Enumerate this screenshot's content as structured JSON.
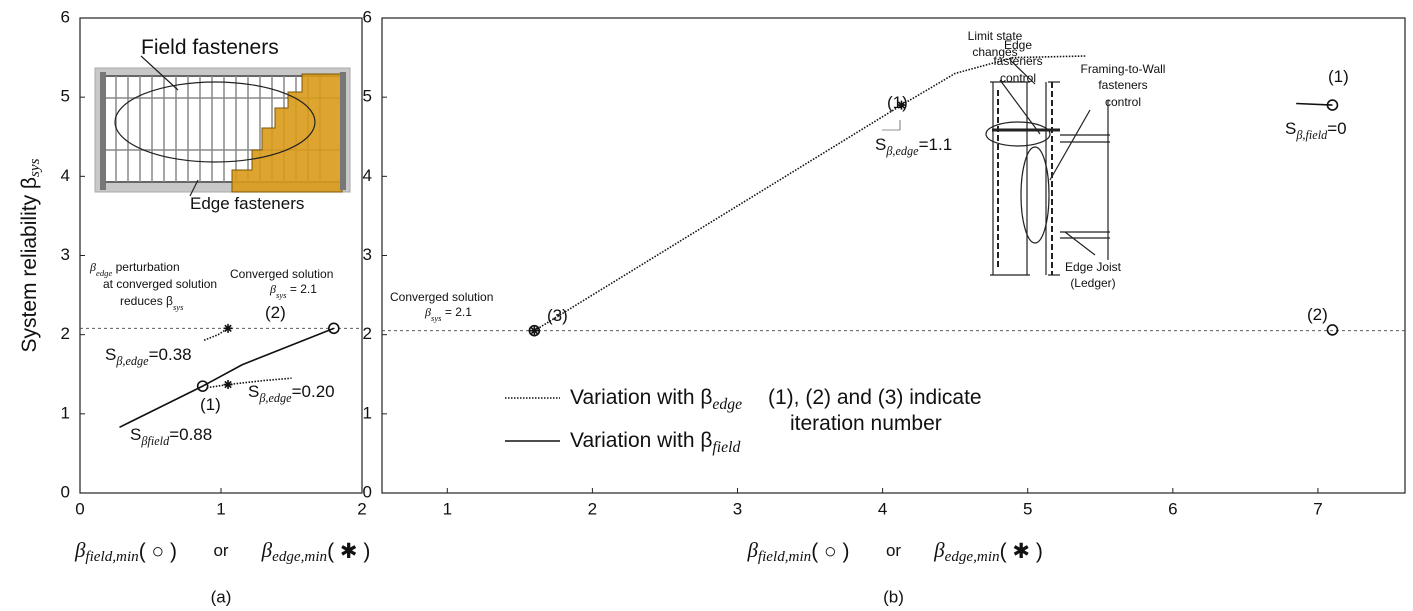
{
  "chart_data": [
    {
      "type": "line",
      "panel_label": "(a)",
      "ylabel": {
        "text": "System reliability   β",
        "sub": "sys"
      },
      "xlabel": [
        {
          "text": "β",
          "sub": "field,min",
          "after": "( ○ )"
        },
        {
          "text": "or"
        },
        {
          "text": "β",
          "sub": "edge,min",
          "after": "( ✱ )"
        }
      ],
      "xlim": [
        0,
        2
      ],
      "ylim": [
        0,
        6
      ],
      "xticks": [
        0,
        1,
        2
      ],
      "yticks": [
        0,
        1,
        2,
        3,
        4,
        5,
        6
      ],
      "hlines": [
        2.08
      ],
      "series": [
        {
          "style": "solid",
          "x": [
            0.28,
            0.87,
            1.15,
            1.8
          ],
          "values": [
            0.83,
            1.35,
            1.62,
            2.08
          ]
        },
        {
          "style": "dotted",
          "x": [
            0.9,
            1.05,
            1.3,
            1.5
          ],
          "values": [
            1.33,
            1.37,
            1.42,
            1.45
          ]
        },
        {
          "style": "dotted",
          "x": [
            0.88,
            0.98,
            1.05
          ],
          "values": [
            1.93,
            2.0,
            2.08
          ]
        }
      ],
      "points": [
        {
          "marker": "circle",
          "x": [
            0.87,
            1.8
          ],
          "values": [
            1.35,
            2.08
          ]
        },
        {
          "marker": "star",
          "x": [
            1.05,
            1.05
          ],
          "values": [
            1.37,
            2.08
          ]
        }
      ],
      "annotations": [
        {
          "text": "Field fasteners"
        },
        {
          "text": "Edge fasteners"
        },
        {
          "text": "β",
          "sub": "edge",
          "after": " perturbation"
        },
        {
          "text": "at converged solution"
        },
        {
          "text": "reduces β",
          "sub": "sys"
        },
        {
          "text": "Converged solution"
        },
        {
          "text": "β",
          "sub": "sys",
          "after": " = 2.1"
        },
        {
          "text": "(2)"
        },
        {
          "text": "S",
          "sub": "β,edge",
          "after": "=0.38"
        },
        {
          "text": "(1)"
        },
        {
          "text": "S",
          "sub": "β,edge",
          "after": "=0.20"
        },
        {
          "text": "S",
          "sub": "βfield",
          "after": "=0.88"
        }
      ]
    },
    {
      "type": "line",
      "panel_label": "(b)",
      "xlabel": [
        {
          "text": "β",
          "sub": "field,min",
          "after": "( ○ )"
        },
        {
          "text": "or"
        },
        {
          "text": "β",
          "sub": "edge,min",
          "after": "( ✱ )"
        }
      ],
      "xlim": [
        0.55,
        7.6
      ],
      "ylim": [
        0,
        6
      ],
      "xticks": [
        1,
        2,
        3,
        4,
        5,
        6,
        7
      ],
      "yticks": [
        0,
        1,
        2,
        3,
        4,
        5,
        6
      ],
      "hlines": [
        2.05
      ],
      "series": [
        {
          "style": "dotted",
          "name": "Variation with β",
          "name_sub": "edge",
          "x": [
            1.6,
            4.13,
            4.5,
            4.9,
            5.4
          ],
          "values": [
            2.05,
            4.9,
            5.3,
            5.5,
            5.52
          ]
        },
        {
          "style": "solid",
          "name": "Variation with β",
          "name_sub": "field",
          "x": [
            6.85,
            7.1
          ],
          "values": [
            4.92,
            4.9
          ]
        }
      ],
      "points": [
        {
          "marker": "circle",
          "x": [
            1.6,
            7.1,
            7.1
          ],
          "values": [
            2.05,
            2.06,
            4.9
          ]
        },
        {
          "marker": "star",
          "x": [
            1.6,
            4.13
          ],
          "values": [
            2.05,
            4.9
          ]
        }
      ],
      "annotations": [
        {
          "text": "Converged solution"
        },
        {
          "text": "β",
          "sub": "sys",
          "after": " = 2.1"
        },
        {
          "text": "(3)"
        },
        {
          "text": "(1)"
        },
        {
          "text": "S",
          "sub": "β,edge",
          "after": "=1.1"
        },
        {
          "text": "(1)"
        },
        {
          "text": "S",
          "sub": "β,field",
          "after": "=0"
        },
        {
          "text": "(2)"
        },
        {
          "text": "Edge"
        },
        {
          "text": "fasteners"
        },
        {
          "text": "control"
        },
        {
          "text": "Limit state"
        },
        {
          "text": "changes"
        },
        {
          "text": "Framing-to-Wall"
        },
        {
          "text": "fasteners"
        },
        {
          "text": "control"
        },
        {
          "text": "Edge Joist"
        },
        {
          "text": "(Ledger)"
        },
        {
          "text": "(1), (2) and (3) indicate"
        },
        {
          "text": "iteration number"
        }
      ]
    }
  ]
}
